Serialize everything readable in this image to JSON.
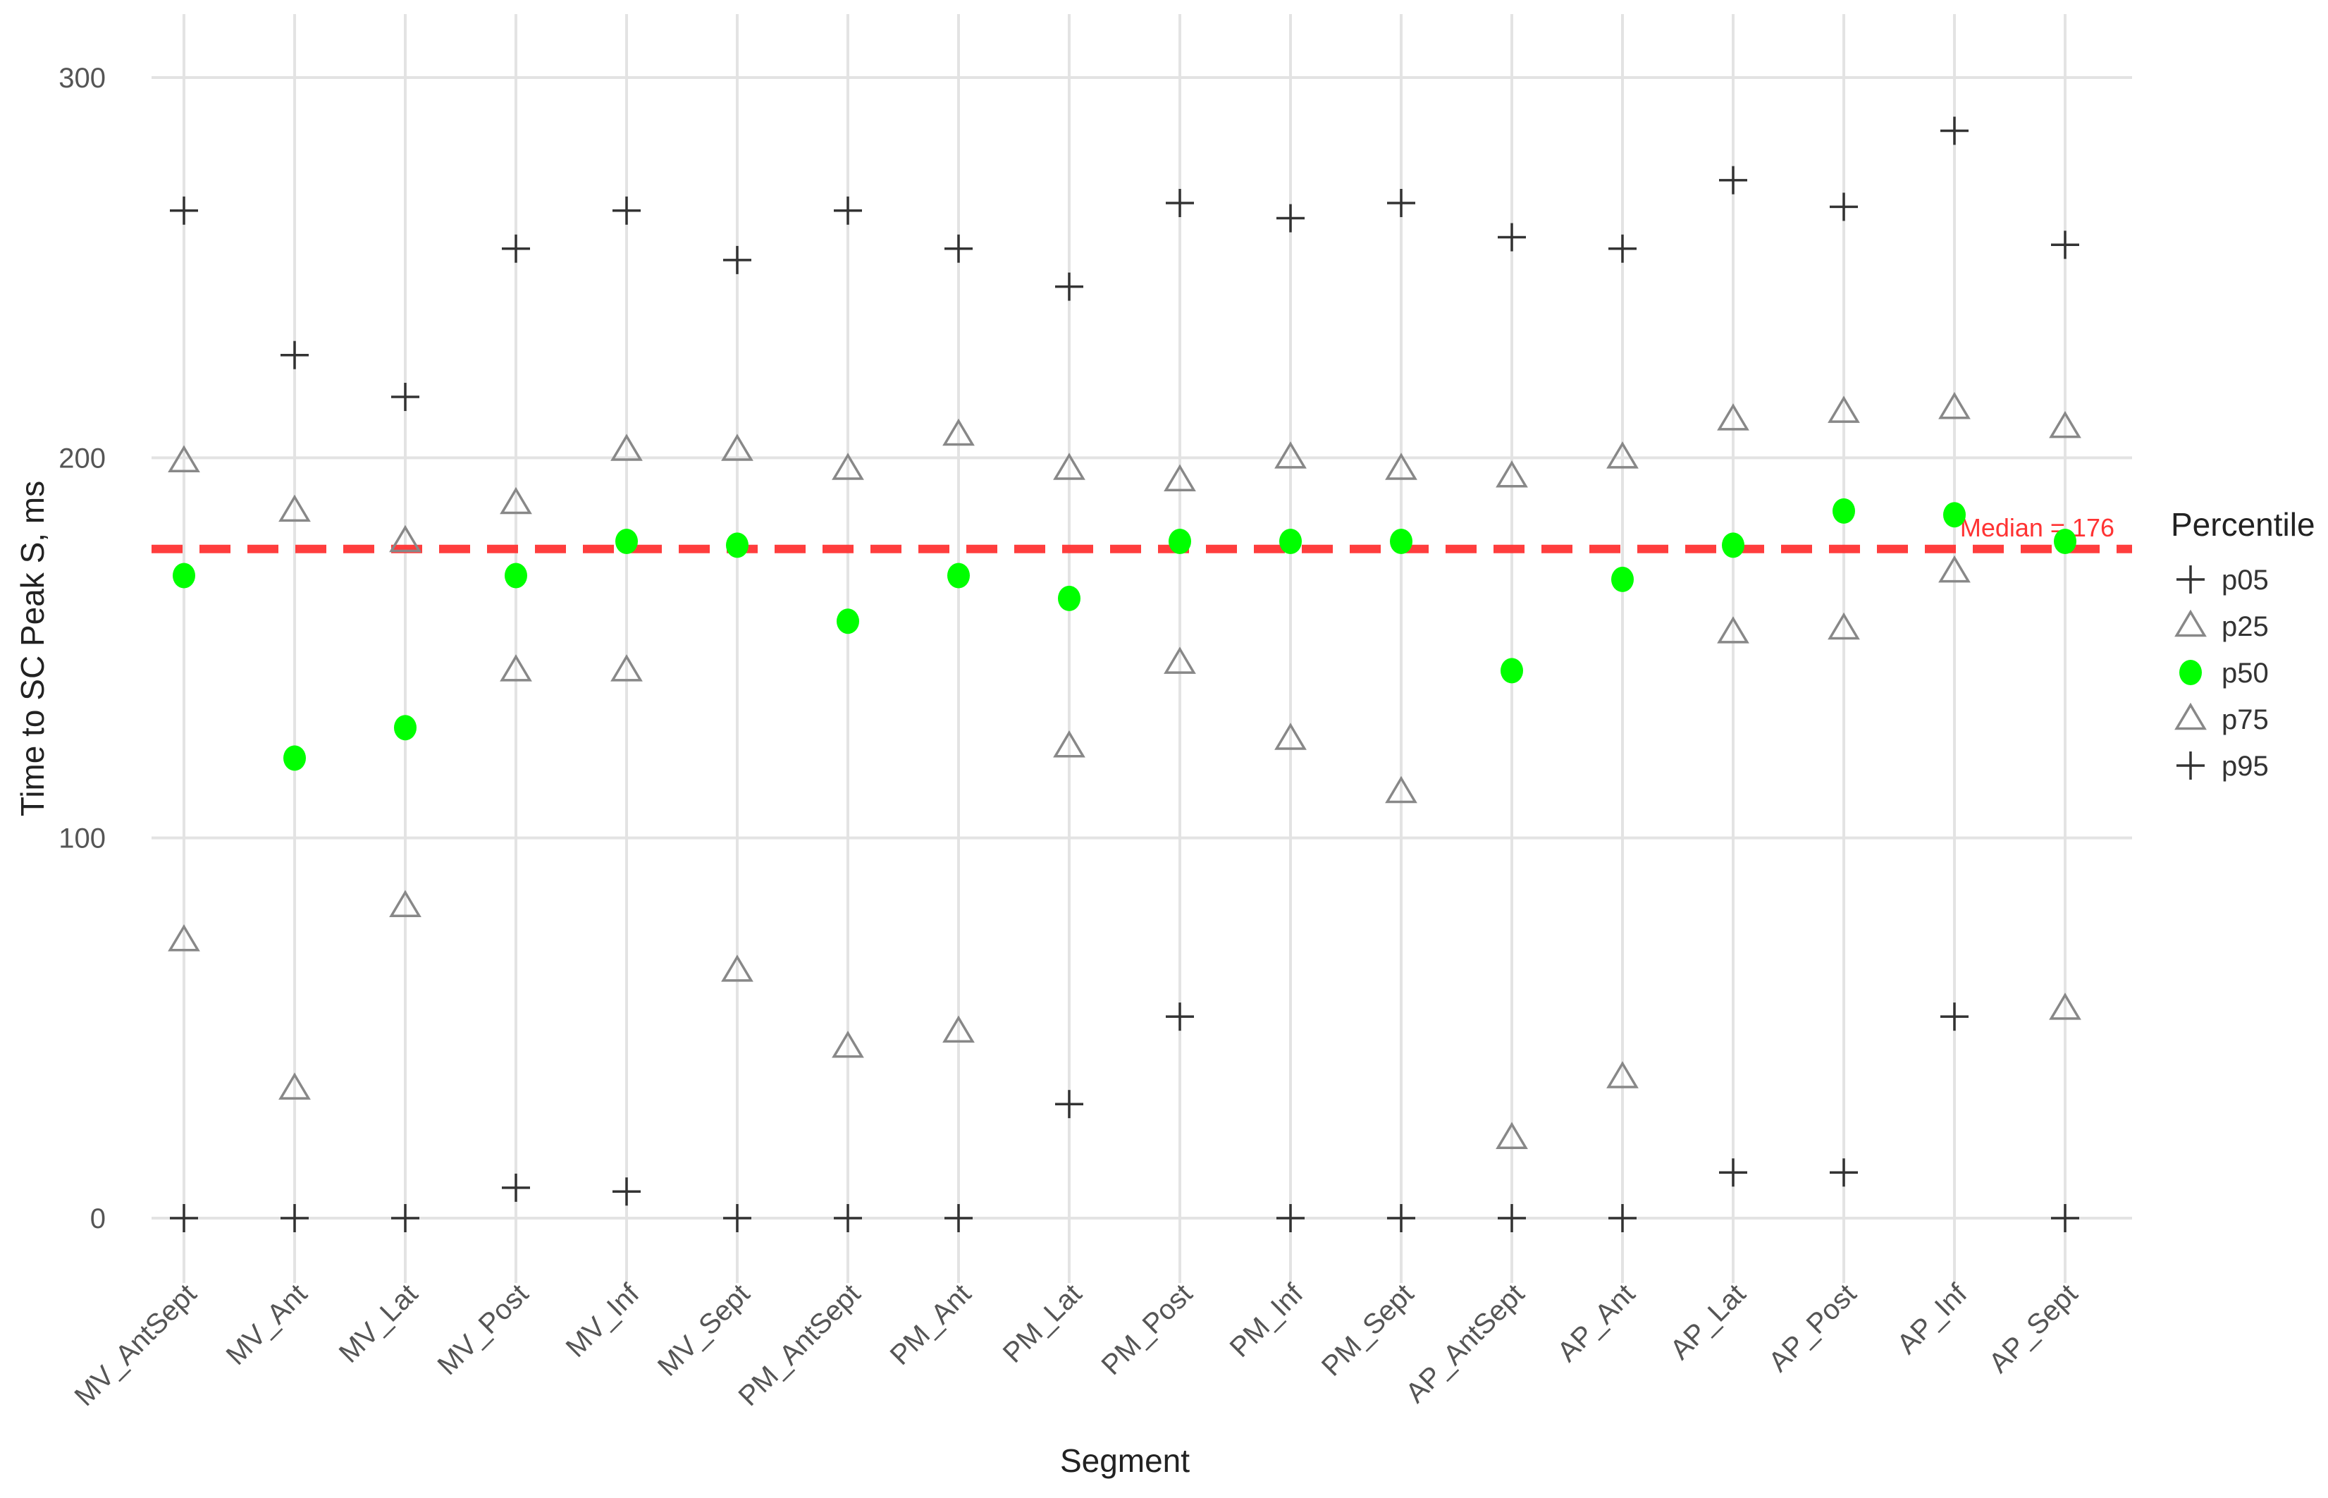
{
  "chart_data": {
    "type": "scatter",
    "title": "",
    "xlabel": "Segment",
    "ylabel": "Time to SC Peak S, ms",
    "ylim": [
      -18,
      310
    ],
    "yticks": [
      0,
      100,
      200,
      300
    ],
    "grid": true,
    "legend_position": "right",
    "legend_title": "Percentile",
    "categories": [
      "MV_AntSept",
      "MV_Ant",
      "MV_Lat",
      "MV_Post",
      "MV_Inf",
      "MV_Sept",
      "PM_AntSept",
      "PM_Ant",
      "PM_Lat",
      "PM_Post",
      "PM_Inf",
      "PM_Sept",
      "AP_AntSept",
      "AP_Ant",
      "AP_Lat",
      "AP_Post",
      "AP_Inf",
      "AP_Sept"
    ],
    "series": [
      {
        "name": "p05",
        "marker": "plus",
        "color": "#333333",
        "values": [
          0,
          0,
          0,
          8,
          7,
          0,
          0,
          0,
          30,
          53,
          0,
          0,
          0,
          0,
          12,
          12,
          53,
          0
        ]
      },
      {
        "name": "p25",
        "marker": "triangle",
        "color": "#888888",
        "values": [
          73,
          34,
          82,
          144,
          144,
          65,
          45,
          49,
          124,
          146,
          126,
          112,
          21,
          37,
          154,
          155,
          170,
          55
        ]
      },
      {
        "name": "p50",
        "marker": "dot",
        "color": "#00ff00",
        "values": [
          169,
          121,
          129,
          169,
          178,
          177,
          157,
          169,
          163,
          178,
          178,
          178,
          144,
          168,
          177,
          186,
          185,
          178
        ]
      },
      {
        "name": "p75",
        "marker": "triangle",
        "color": "#888888",
        "values": [
          199,
          186,
          178,
          188,
          202,
          202,
          197,
          206,
          197,
          194,
          200,
          197,
          195,
          200,
          210,
          212,
          213,
          208
        ]
      },
      {
        "name": "p95",
        "marker": "plus",
        "color": "#333333",
        "values": [
          265,
          227,
          216,
          255,
          265,
          252,
          265,
          255,
          245,
          267,
          263,
          267,
          258,
          255,
          273,
          266,
          286,
          256
        ]
      }
    ],
    "reference_line": {
      "value": 176,
      "label": "Median = 176",
      "color": "#ff3333",
      "style": "dashed"
    }
  }
}
